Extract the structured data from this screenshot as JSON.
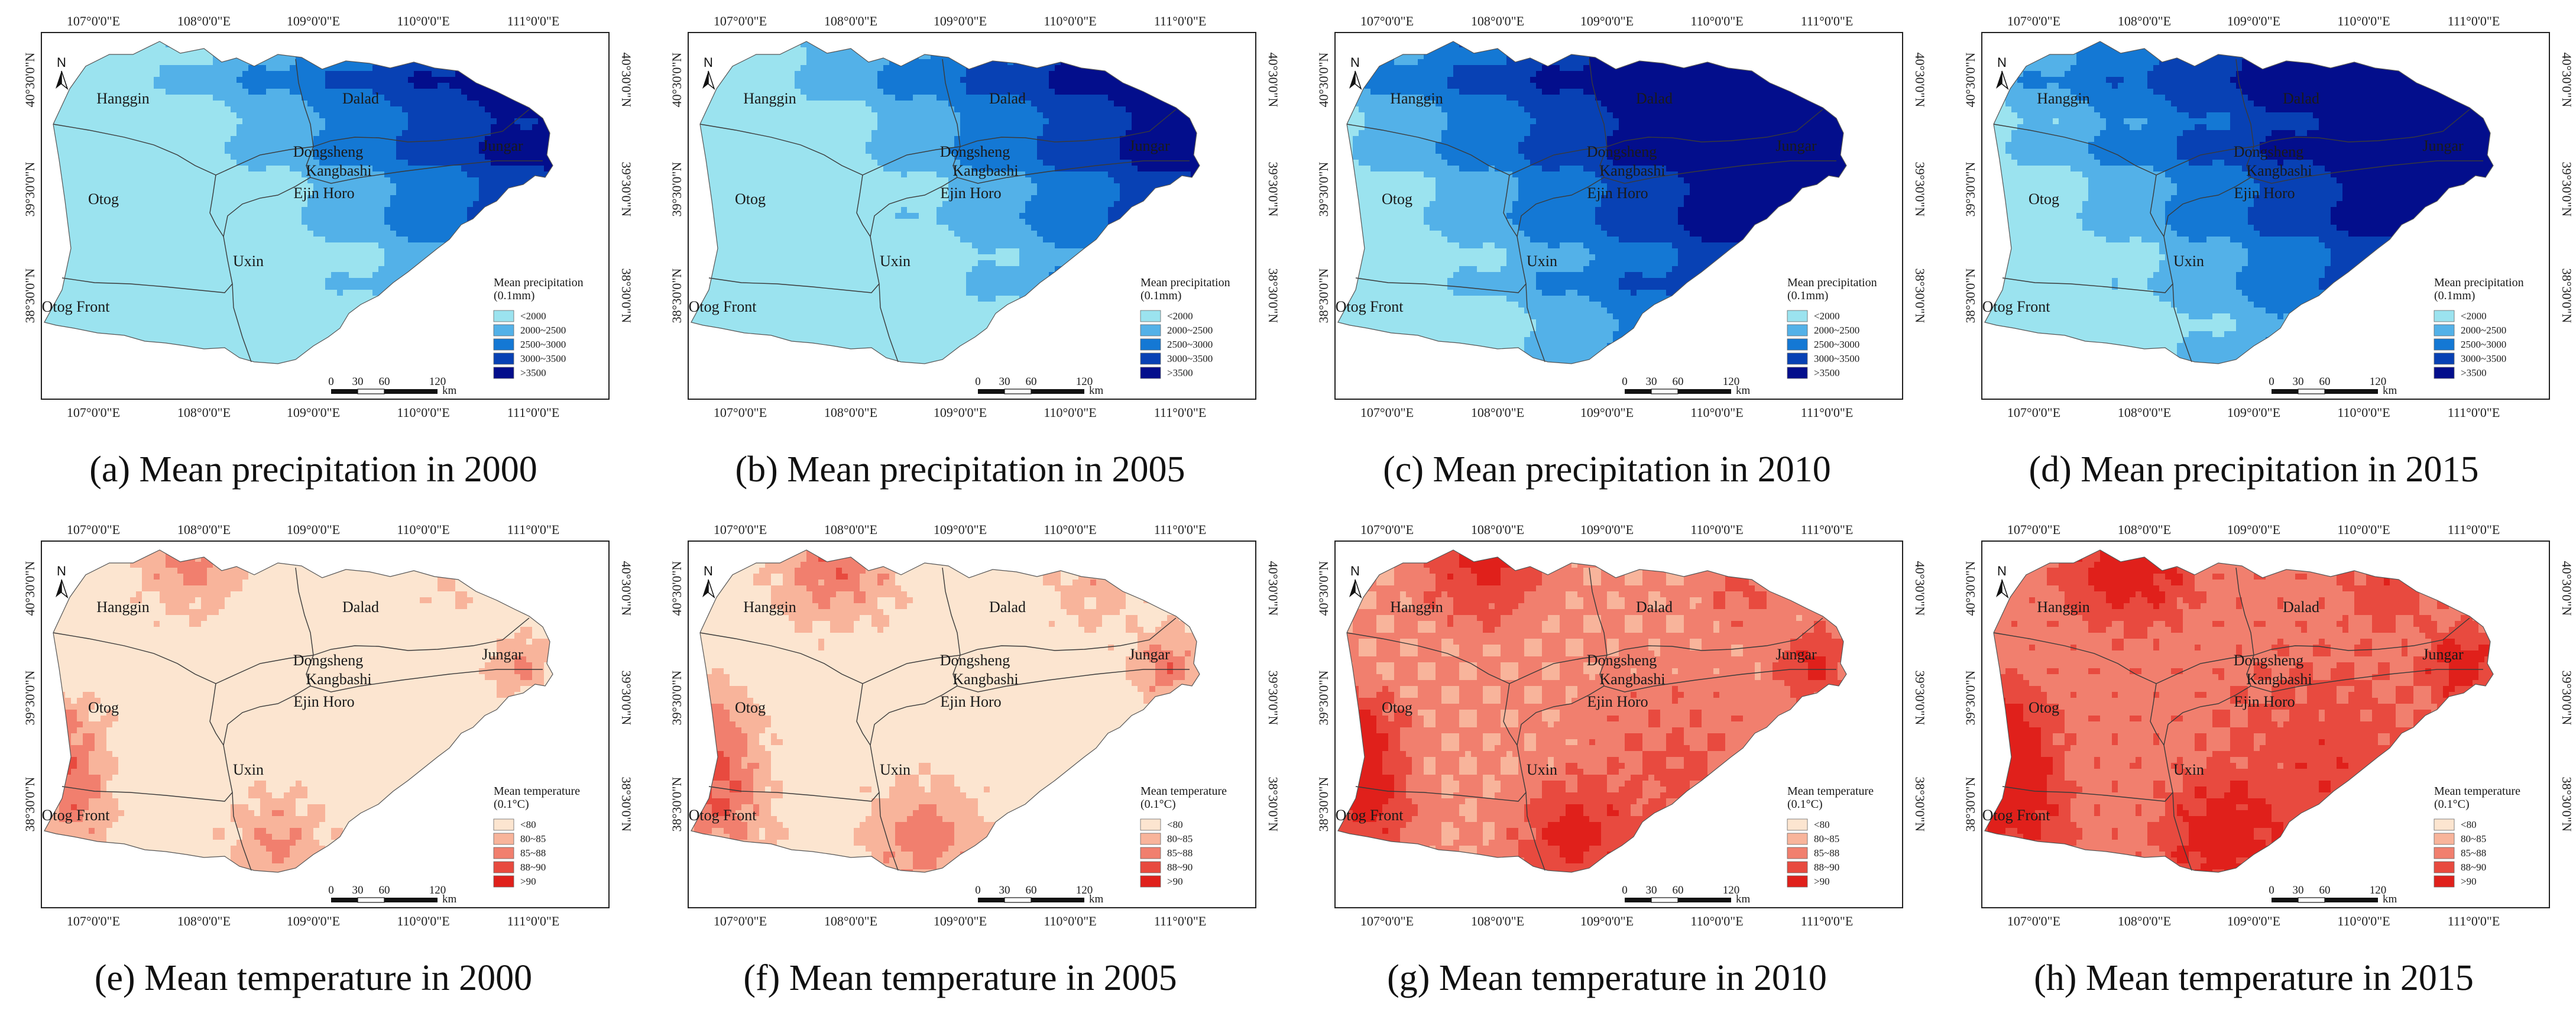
{
  "axes": {
    "lon_labels": [
      "107°0'0\"E",
      "108°0'0\"E",
      "109°0'0\"E",
      "110°0'0\"E",
      "111°0'0\"E"
    ],
    "lat_labels": [
      "40°30'0\"N",
      "39°30'0\"N",
      "38°30'0\"N"
    ]
  },
  "north_label": "N",
  "scale_bar": {
    "ticks": [
      "0",
      "30",
      "60",
      "120"
    ],
    "unit": "km"
  },
  "places": {
    "hanggin": "Hanggin",
    "dalad": "Dalad",
    "dongsheng": "Dongsheng",
    "kangbashi": "Kangbashi",
    "jungar": "Jungar",
    "ejin_horo": "Ejin Horo",
    "otog": "Otog",
    "uxin": "Uxin",
    "otog_front": "Otog Front"
  },
  "legends": {
    "precipitation": {
      "title": [
        "Mean precipitation",
        "(0.1mm)"
      ],
      "classes": [
        "<2000",
        "2000~2500",
        "2500~3000",
        "3000~3500",
        ">3500"
      ],
      "colors": [
        "#9BE3EF",
        "#53B1E8",
        "#1478D4",
        "#0841B4",
        "#030E8C"
      ]
    },
    "temperature": {
      "title": [
        "Mean temperature",
        "(0.1°C)"
      ],
      "classes": [
        "<80",
        "80~85",
        "85~88",
        "88~90",
        ">90"
      ],
      "colors": [
        "#FCE5D0",
        "#F8B49B",
        "#F17F6E",
        "#E84A3F",
        "#E0201B"
      ]
    }
  },
  "panels": [
    {
      "caption": "(a) Mean precipitation in 2000",
      "variable": "precipitation",
      "level": 0
    },
    {
      "caption": "(b) Mean precipitation in 2005",
      "variable": "precipitation",
      "level": 1
    },
    {
      "caption": "(c) Mean precipitation in 2010",
      "variable": "precipitation",
      "level": 2
    },
    {
      "caption": "(d) Mean precipitation in 2015",
      "variable": "precipitation",
      "level": 3
    },
    {
      "caption": "(e) Mean temperature in 2000",
      "variable": "temperature",
      "level": 0
    },
    {
      "caption": "(f) Mean temperature in 2005",
      "variable": "temperature",
      "level": 1
    },
    {
      "caption": "(g) Mean temperature in 2010",
      "variable": "temperature",
      "level": 2
    },
    {
      "caption": "(h) Mean temperature in 2015",
      "variable": "temperature",
      "level": 3
    }
  ]
}
